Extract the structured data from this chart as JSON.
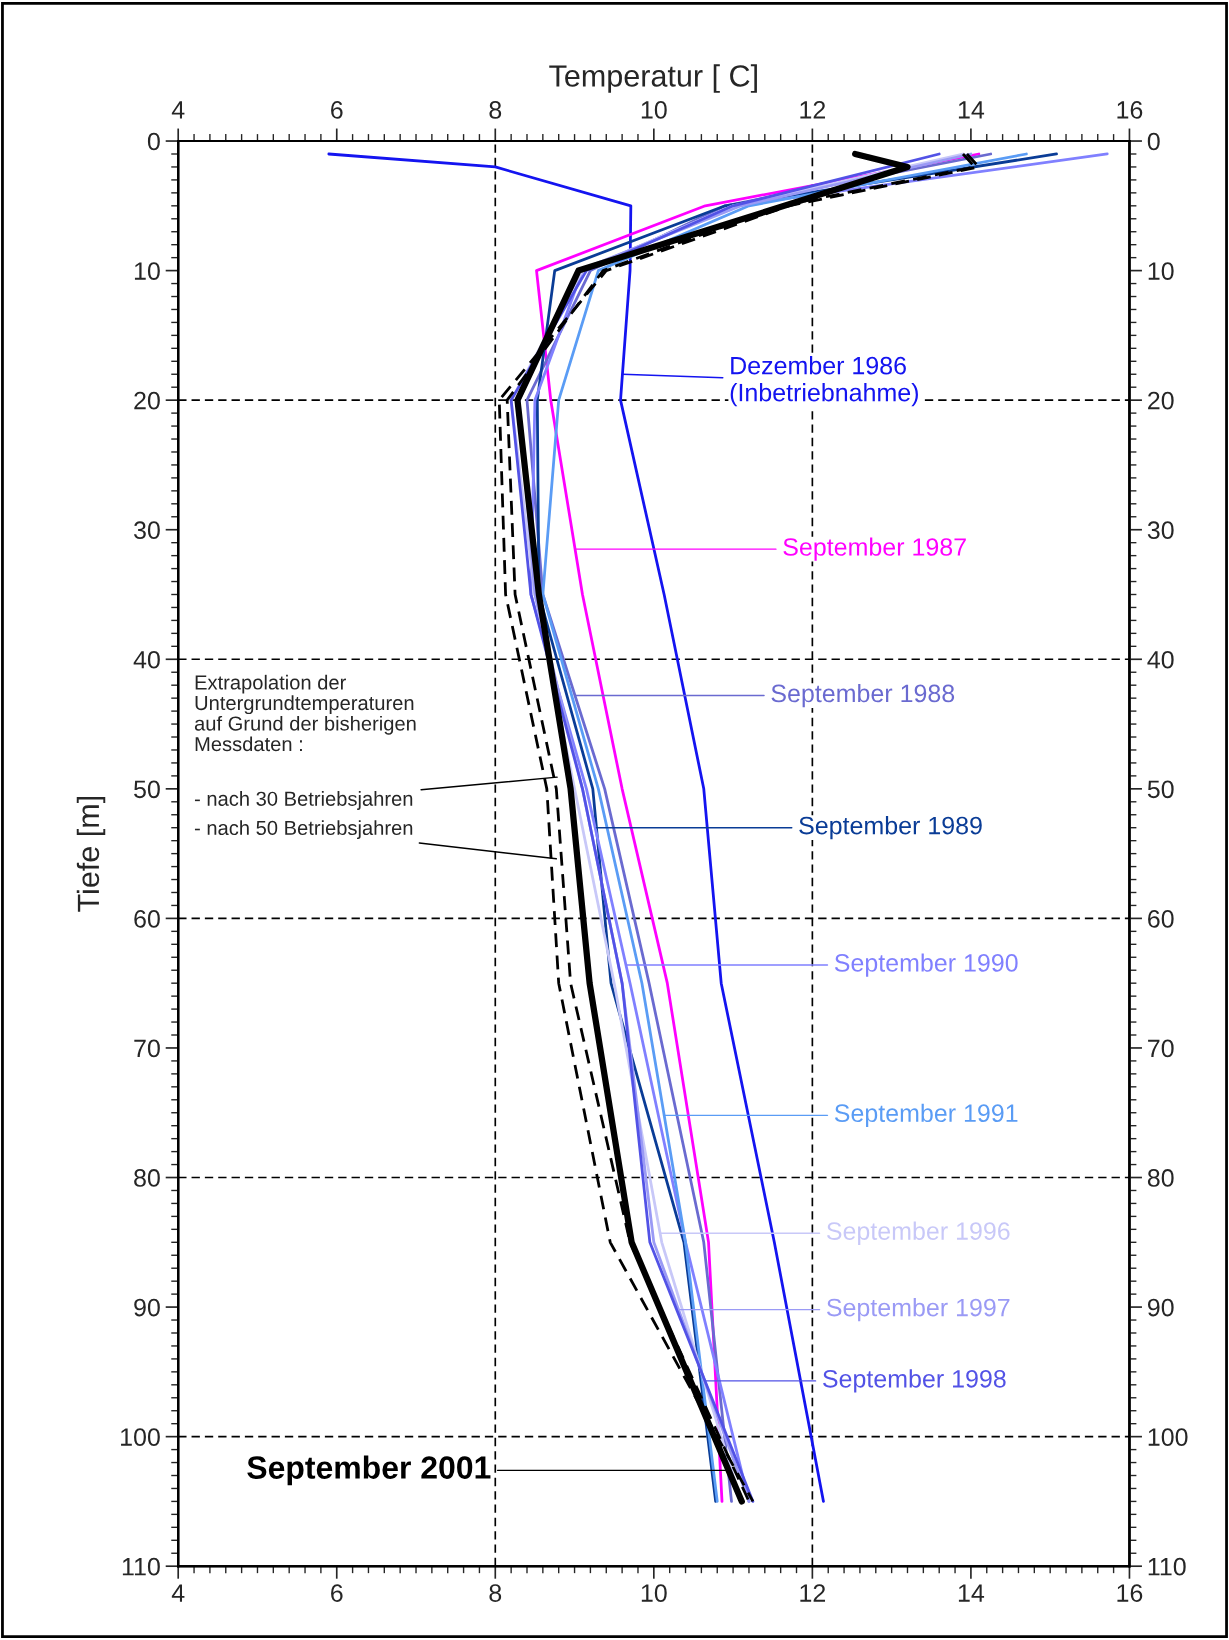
{
  "chart_data": {
    "type": "line",
    "x2label": "Temperatur [ C]",
    "ylabel": "Tiefe [m]",
    "xlim": [
      4,
      16
    ],
    "xticks": [
      4,
      6,
      8,
      10,
      12,
      14,
      16
    ],
    "x2lim": [
      4,
      16
    ],
    "x2ticks": [
      4,
      6,
      8,
      10,
      12,
      14,
      16
    ],
    "ylim": [
      110,
      0
    ],
    "yticks": [
      0,
      10,
      20,
      30,
      40,
      50,
      60,
      70,
      80,
      90,
      100,
      110
    ],
    "y2lim": [
      110,
      0
    ],
    "y2ticks": [
      0,
      10,
      20,
      30,
      40,
      50,
      60,
      70,
      80,
      90,
      100,
      110
    ],
    "grid": false,
    "legend": "right",
    "marker": "none",
    "series": [
      {
        "name": "Dezember 1986\n(Inbetriebnahme)",
        "color": "#1414f0",
        "x": [
          5.9,
          8.0,
          9.71,
          9.7,
          9.58,
          10.13,
          10.63,
          10.85,
          11.52,
          12.14
        ],
        "values": [
          1,
          2,
          5,
          10,
          20,
          35,
          50,
          65,
          85,
          105
        ]
      },
      {
        "name": "September 1987",
        "color": "#ff00ff",
        "x": [
          14.1,
          10.65,
          8.52,
          8.7,
          9.1,
          9.6,
          10.17,
          10.69,
          10.86
        ],
        "values": [
          1,
          5,
          10,
          20,
          35,
          50,
          65,
          85,
          105
        ]
      },
      {
        "name": "September 1988",
        "color": "#6a6ad0",
        "x": [
          14.25,
          10.9,
          9.2,
          8.4,
          8.6,
          9.38,
          9.94,
          10.63,
          10.98
        ],
        "values": [
          1,
          5,
          10,
          20,
          35,
          50,
          65,
          85,
          105
        ]
      },
      {
        "name": "September 1989",
        "color": "#0a3c96",
        "x": [
          15.08,
          10.9,
          8.75,
          8.53,
          8.55,
          9.23,
          9.46,
          10.38,
          10.78
        ],
        "values": [
          1,
          5,
          10,
          20,
          35,
          50,
          65,
          85,
          105
        ]
      },
      {
        "name": "September 1990",
        "color": "#8080ff",
        "x": [
          15.72,
          11.0,
          9.1,
          8.5,
          8.45,
          9.15,
          9.7,
          10.4,
          11.2
        ],
        "values": [
          1,
          5,
          10,
          20,
          35,
          50,
          65,
          85,
          105
        ]
      },
      {
        "name": "September 1991",
        "color": "#5a9cf5",
        "x": [
          14.7,
          11.2,
          9.3,
          8.8,
          8.6,
          9.3,
          9.85,
          10.4,
          10.8
        ],
        "values": [
          1,
          5,
          10,
          20,
          35,
          50,
          65,
          85,
          105
        ]
      },
      {
        "name": "September 1996",
        "color": "#c8c8f8",
        "x": [
          13.9,
          11.0,
          9.1,
          8.2,
          8.5,
          9.0,
          9.5,
          10.1,
          11.1
        ],
        "values": [
          1,
          5,
          10,
          20,
          35,
          50,
          65,
          85,
          105
        ]
      },
      {
        "name": "September 1997",
        "color": "#9a9af5",
        "x": [
          14.0,
          11.1,
          9.05,
          8.3,
          8.5,
          9.1,
          9.6,
          10.0,
          11.2
        ],
        "values": [
          1,
          5,
          10,
          20,
          35,
          50,
          65,
          85,
          105
        ]
      },
      {
        "name": "September 1998",
        "color": "#5252e6",
        "x": [
          13.6,
          11.0,
          9.15,
          8.2,
          8.45,
          9.1,
          9.6,
          9.95,
          11.25
        ],
        "values": [
          1,
          5,
          10,
          20,
          35,
          50,
          65,
          85,
          105
        ]
      },
      {
        "name": "September 2001",
        "color": "#000000",
        "x": [
          12.54,
          13.2,
          9.05,
          8.28,
          8.55,
          8.95,
          9.19,
          9.72,
          11.11
        ],
        "values": [
          1,
          2,
          10,
          20,
          35,
          50,
          65,
          85,
          105
        ]
      },
      {
        "color": "#000000",
        "line_style": "dashed",
        "x": [
          13.9,
          14.05,
          11.6,
          9.36,
          8.15,
          8.25,
          8.77,
          8.95,
          9.7,
          11.2
        ],
        "values": [
          1,
          2,
          5,
          10,
          20,
          35,
          50,
          65,
          85,
          105
        ]
      },
      {
        "color": "#000000",
        "line_style": "dashed",
        "x": [
          13.95,
          14.1,
          11.7,
          9.4,
          8.05,
          8.13,
          8.65,
          8.8,
          9.45,
          11.25
        ],
        "values": [
          1,
          2,
          5,
          10,
          20,
          35,
          50,
          65,
          85,
          105
        ]
      }
    ],
    "ref_lines": [
      {
        "axis": "x",
        "value": 8,
        "line_style": "dashed",
        "color": "#000000"
      },
      {
        "axis": "x",
        "value": 12,
        "line_style": "dashed",
        "color": "#000000"
      },
      {
        "axis": "y",
        "value": 20,
        "line_style": "dashed",
        "color": "#000000"
      },
      {
        "axis": "y",
        "value": 40,
        "line_style": "dashed",
        "color": "#000000"
      },
      {
        "axis": "y",
        "value": 60,
        "line_style": "dashed",
        "color": "#000000"
      },
      {
        "axis": "y",
        "value": 80,
        "line_style": "dashed",
        "color": "#000000"
      },
      {
        "axis": "y",
        "value": 100,
        "line_style": "dashed",
        "color": "#000000"
      }
    ],
    "annotations": [
      "Extrapolation der\nUntergrundtemperaturen\nauf Grund der bisherigen\nMessdaten :",
      {
        "text": "- nach 30 Betriebsjahren",
        "x": 8.78,
        "y": 49.1
      },
      {
        "text": "- nach 50 Betriebsjahren",
        "x": 8.77,
        "y": 55.4
      }
    ]
  }
}
